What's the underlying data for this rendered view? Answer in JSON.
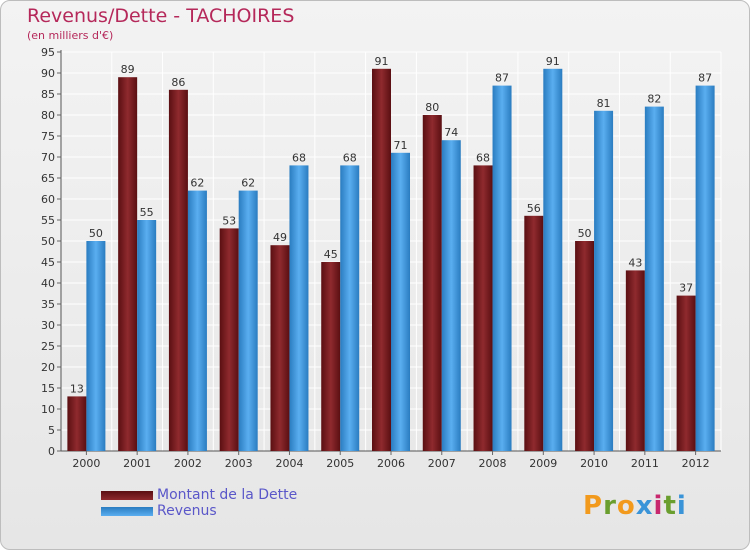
{
  "chart_data": {
    "type": "bar",
    "title": "Revenus/Dette - TACHOIRES",
    "subtitle": "(en milliers d'€)",
    "categories": [
      "2000",
      "2001",
      "2002",
      "2003",
      "2004",
      "2005",
      "2006",
      "2007",
      "2008",
      "2009",
      "2010",
      "2011",
      "2012"
    ],
    "series": [
      {
        "name": "Montant de la Dette",
        "color": "#7a1e22",
        "values": [
          13,
          89,
          86,
          53,
          49,
          45,
          91,
          80,
          68,
          56,
          50,
          43,
          37
        ]
      },
      {
        "name": "Revenus",
        "color": "#3a94d8",
        "values": [
          50,
          55,
          62,
          62,
          68,
          68,
          71,
          74,
          87,
          91,
          81,
          82,
          87
        ]
      }
    ],
    "ylim": [
      0,
      95
    ],
    "ytick_step": 5,
    "grid": true,
    "legend_position": "bottom-left"
  },
  "logo": {
    "letters": [
      "P",
      "r",
      "o",
      "x",
      "i",
      "t",
      "i"
    ],
    "colors": [
      "#f29a1d",
      "#6a9e2e",
      "#f29a1d",
      "#3a94d8",
      "#c8286e",
      "#6a9e2e",
      "#3a94d8"
    ]
  }
}
